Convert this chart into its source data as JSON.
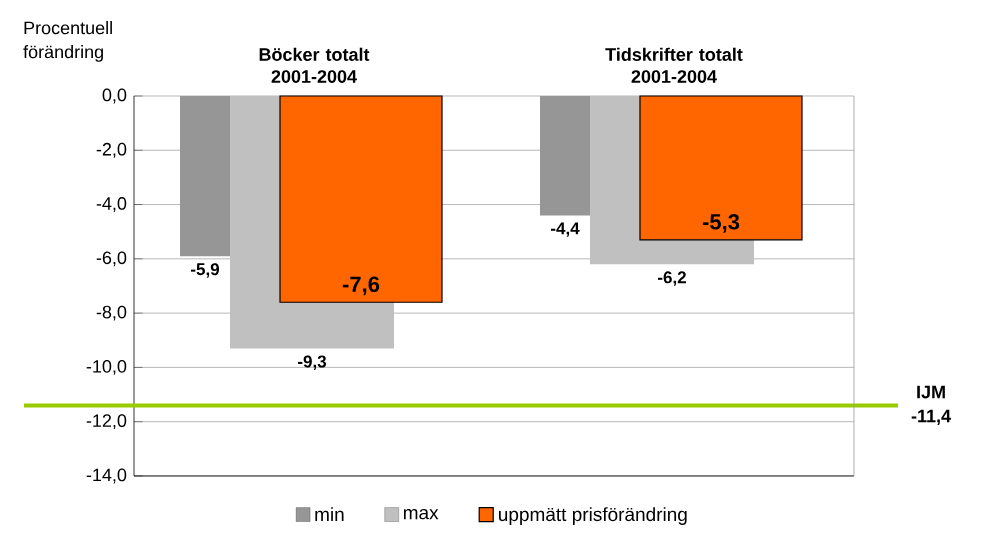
{
  "chart_data": {
    "type": "bar",
    "annotations": [
      "Procentuell förändring"
    ],
    "categories": [
      "Böcker totalt 2001-2004",
      "Tidskrifter totalt 2001-2004"
    ],
    "series": [
      {
        "name": "min",
        "color": "#969696",
        "values": [
          -5.9,
          -4.4
        ],
        "value_labels": [
          "-5,9",
          "-4,4"
        ]
      },
      {
        "name": "max",
        "color": "#c0c0c0",
        "values": [
          -9.3,
          -6.2
        ],
        "value_labels": [
          "-9,3",
          "-6,2"
        ]
      },
      {
        "name": "uppmätt prisförändring",
        "color": "#ff6600",
        "values": [
          -7.6,
          -5.3
        ],
        "value_labels": [
          "-7,6",
          "-5,3"
        ]
      }
    ],
    "ylim": [
      -14,
      0
    ],
    "yticks": [
      {
        "value": 0,
        "label": "0,0"
      },
      {
        "value": -2,
        "label": "-2,0"
      },
      {
        "value": -4,
        "label": "-4,0"
      },
      {
        "value": -6,
        "label": "-6,0"
      },
      {
        "value": -8,
        "label": "-8,0"
      },
      {
        "value": -10,
        "label": "-10,0"
      },
      {
        "value": -12,
        "label": "-12,0"
      },
      {
        "value": -14,
        "label": "-14,0"
      }
    ],
    "ref_lines": [
      {
        "axis": "y",
        "value": -11.4,
        "label": "IJM -11,4",
        "color": "#99cc00"
      }
    ],
    "grid": "y",
    "legend": "bottom"
  }
}
